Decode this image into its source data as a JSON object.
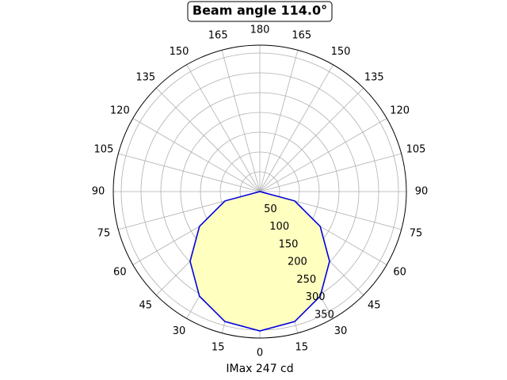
{
  "chart_data": {
    "type": "polar",
    "title": "Beam angle 114.0°",
    "xlabel": "IMax 247 cd",
    "series": [
      {
        "color": "#0000dd",
        "fill": "#ffffc0",
        "theta": [
          -90,
          -75,
          -60,
          -45,
          -30,
          -15,
          0,
          15,
          30,
          45,
          60,
          75,
          90
        ],
        "values": [
          0,
          91,
          176,
          249,
          305,
          340,
          352,
          340,
          305,
          249,
          176,
          91,
          0
        ]
      }
    ],
    "rlim": [
      0,
      370
    ],
    "rticks": [
      50,
      100,
      150,
      200,
      250,
      300,
      350
    ],
    "thetaticks": [
      {
        "value": -165,
        "label": "165"
      },
      {
        "value": -150,
        "label": "150"
      },
      {
        "value": -135,
        "label": "135"
      },
      {
        "value": -120,
        "label": "120"
      },
      {
        "value": -105,
        "label": "105"
      },
      {
        "value": -90,
        "label": "90"
      },
      {
        "value": -75,
        "label": "75"
      },
      {
        "value": -60,
        "label": "60"
      },
      {
        "value": -45,
        "label": "45"
      },
      {
        "value": -30,
        "label": "30"
      },
      {
        "value": -15,
        "label": "15"
      },
      0,
      15,
      30,
      45,
      60,
      75,
      90,
      105,
      120,
      135,
      150,
      165,
      180
    ],
    "grid": true
  }
}
